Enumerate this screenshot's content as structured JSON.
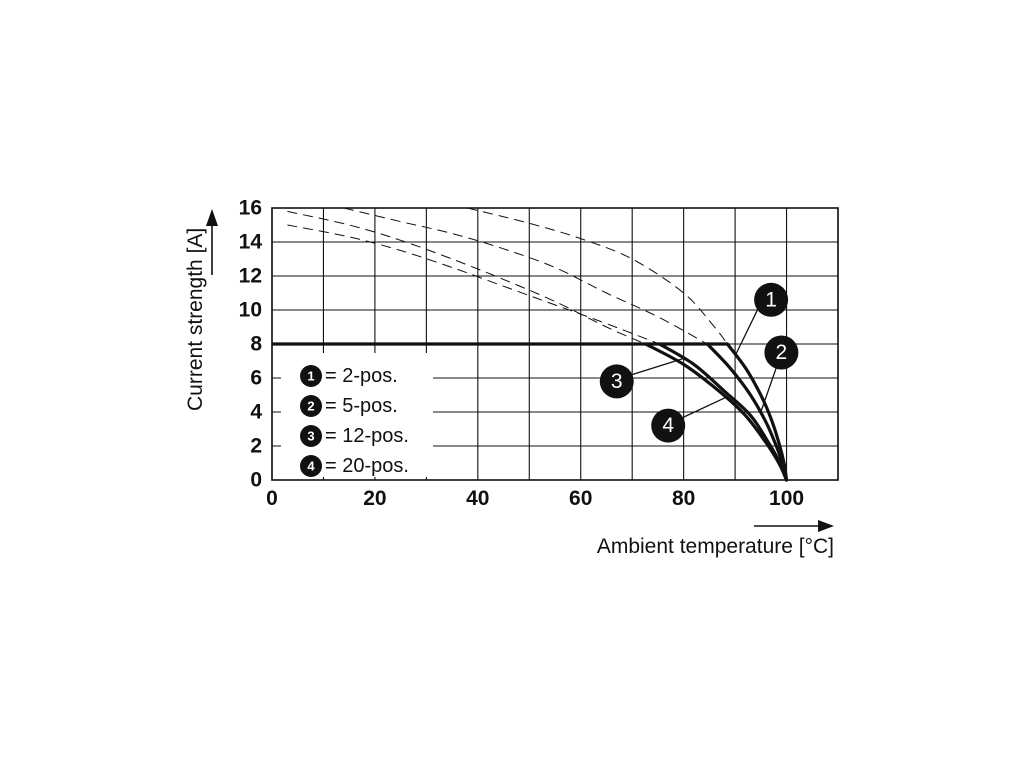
{
  "chart_data": {
    "type": "line",
    "xlabel": "Ambient temperature [°C]",
    "ylabel": "Current strength [A]",
    "xlim": [
      0,
      110
    ],
    "ylim": [
      0,
      16
    ],
    "x_ticks": [
      "0",
      "20",
      "40",
      "60",
      "80",
      "100"
    ],
    "y_ticks": [
      "0",
      "2",
      "4",
      "6",
      "8",
      "10",
      "12",
      "14",
      "16"
    ],
    "grid": true,
    "legend_position": "bottom-left",
    "legend": [
      {
        "badge": "1",
        "label": "= 2-pos."
      },
      {
        "badge": "2",
        "label": "= 5-pos."
      },
      {
        "badge": "3",
        "label": "= 12-pos."
      },
      {
        "badge": "4",
        "label": "= 20-pos."
      }
    ],
    "limit": {
      "value": 8
    },
    "series": [
      {
        "name": "1",
        "dashed_x": [
          38,
          50,
          60,
          70,
          80,
          86,
          88.5
        ],
        "dashed_y": [
          16,
          15.1,
          14.2,
          13.0,
          11.0,
          9.0,
          8.0
        ],
        "solid_x": [
          88.5,
          92,
          95,
          97,
          98.5,
          99.5,
          100
        ],
        "solid_y": [
          8.0,
          6.6,
          5.0,
          3.6,
          2.2,
          1.0,
          0
        ]
      },
      {
        "name": "2",
        "dashed_x": [
          14,
          25,
          35,
          45,
          55,
          65,
          75,
          84.6
        ],
        "dashed_y": [
          16,
          15.2,
          14.5,
          13.6,
          12.5,
          11.0,
          9.6,
          8.0
        ],
        "solid_x": [
          84.6,
          89,
          93,
          96,
          98,
          99.3,
          100
        ],
        "solid_y": [
          8.0,
          6.6,
          5.0,
          3.4,
          2.0,
          0.9,
          0
        ]
      },
      {
        "name": "3",
        "dashed_x": [
          3,
          15,
          25,
          35,
          45,
          55,
          65,
          72.6
        ],
        "dashed_y": [
          15.8,
          15.0,
          14.1,
          13.0,
          11.8,
          10.5,
          9.0,
          8.0
        ],
        "solid_x": [
          72.6,
          80,
          87,
          92,
          96,
          98.5,
          100
        ],
        "solid_y": [
          8.0,
          6.8,
          5.2,
          3.8,
          2.2,
          1.0,
          0
        ]
      },
      {
        "name": "4",
        "dashed_x": [
          3,
          15,
          25,
          35,
          45,
          55,
          65,
          75.3
        ],
        "dashed_y": [
          15.0,
          14.3,
          13.5,
          12.5,
          11.4,
          10.3,
          9.2,
          8.0
        ],
        "solid_x": [
          75.3,
          82,
          88,
          93,
          96.5,
          98.7,
          100
        ],
        "solid_y": [
          8.0,
          6.8,
          5.2,
          3.8,
          2.2,
          1.0,
          0
        ]
      }
    ],
    "callouts": [
      {
        "badge": "1",
        "badge_at": [
          97,
          10.6
        ],
        "line_from": [
          94.5,
          10.1
        ],
        "line_to": [
          90,
          7.3
        ]
      },
      {
        "badge": "2",
        "badge_at": [
          99,
          7.5
        ],
        "line_from": [
          98,
          6.6
        ],
        "line_to": [
          95,
          4.0
        ]
      },
      {
        "badge": "3",
        "badge_at": [
          67,
          5.8
        ],
        "line_from": [
          70,
          6.2
        ],
        "line_to": [
          80.5,
          7.2
        ]
      },
      {
        "badge": "4",
        "badge_at": [
          77,
          3.2
        ],
        "line_from": [
          80,
          3.7
        ],
        "line_to": [
          88.5,
          4.9
        ]
      }
    ]
  }
}
